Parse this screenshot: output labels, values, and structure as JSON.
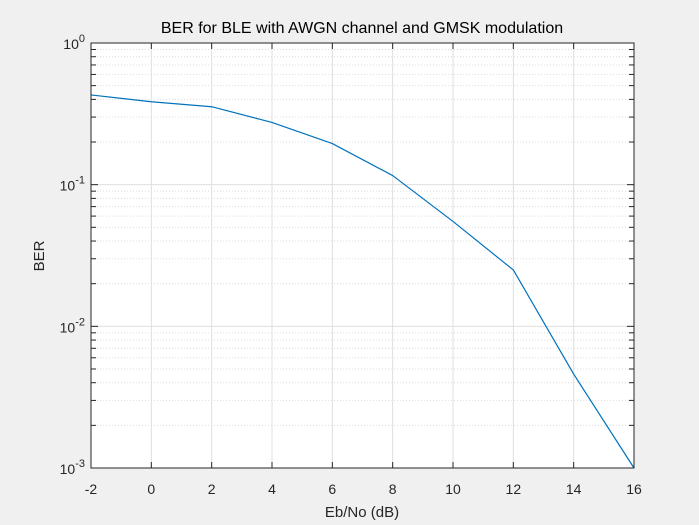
{
  "chart_data": {
    "type": "line",
    "title": "BER for BLE with AWGN channel and GMSK modulation",
    "xlabel": "Eb/No (dB)",
    "ylabel": "BER",
    "xlim": [
      -2,
      16
    ],
    "ylim": [
      0.001,
      1
    ],
    "yscale": "log",
    "grid": true,
    "minor_grid": true,
    "xticks": [
      "-2",
      "0",
      "2",
      "4",
      "6",
      "8",
      "10",
      "12",
      "14",
      "16"
    ],
    "yticks": [
      {
        "base": "10",
        "exp": "-3"
      },
      {
        "base": "10",
        "exp": "-2"
      },
      {
        "base": "10",
        "exp": "-1"
      },
      {
        "base": "10",
        "exp": "0"
      }
    ],
    "series": [
      {
        "color": "#0072bd",
        "x": [
          -2,
          0,
          2,
          4,
          6,
          8,
          10,
          12,
          14,
          16
        ],
        "y": [
          0.43,
          0.385,
          0.355,
          0.275,
          0.195,
          0.116,
          0.055,
          0.025,
          0.0046,
          0.001
        ]
      }
    ]
  }
}
